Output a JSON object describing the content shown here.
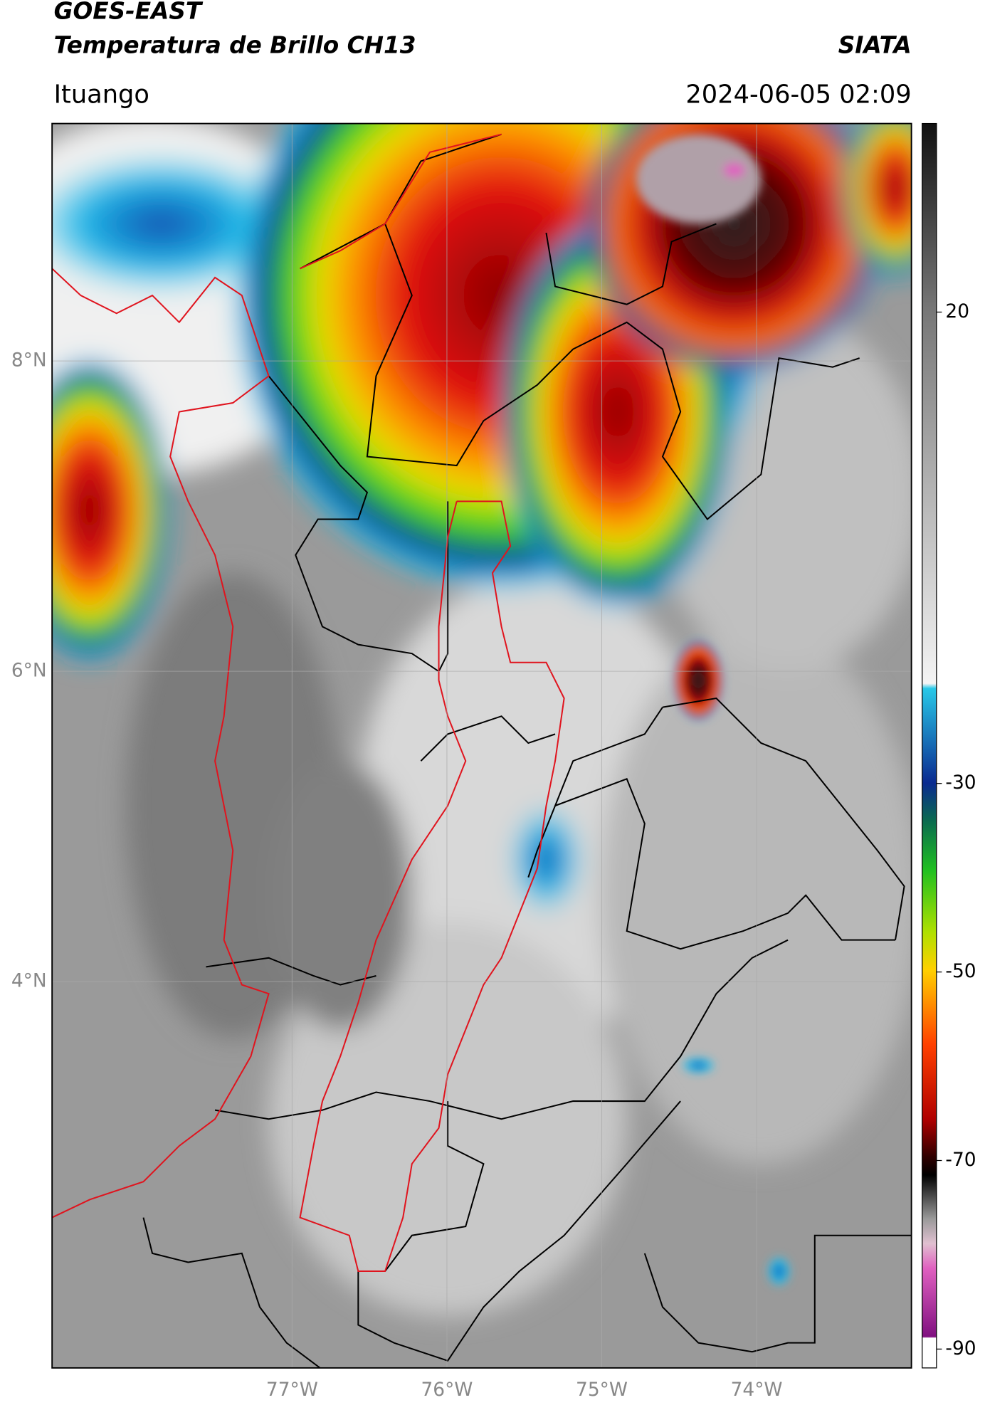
{
  "header": {
    "title": "GOES-EAST",
    "subtitle": "Temperatura de Brillo CH13",
    "brand": "SIATA",
    "location": "Ituango",
    "datetime": "2024-06-05 02:09"
  },
  "map": {
    "xlim": [
      -78.55,
      -73.0
    ],
    "ylim": [
      1.51,
      9.53
    ],
    "yticks": [
      {
        "value": 8,
        "label": "8°N"
      },
      {
        "value": 6,
        "label": "6°N"
      },
      {
        "value": 4,
        "label": "4°N"
      }
    ],
    "xticks": [
      {
        "value": -77,
        "label": "77°W"
      },
      {
        "value": -76,
        "label": "76°W"
      },
      {
        "value": -75,
        "label": "75°W"
      },
      {
        "value": -74,
        "label": "74°W"
      }
    ],
    "grid": true
  },
  "colorbar": {
    "lim": [
      -92,
      40
    ],
    "ticks": [
      20,
      -30,
      -50,
      -70,
      -90
    ]
  }
}
